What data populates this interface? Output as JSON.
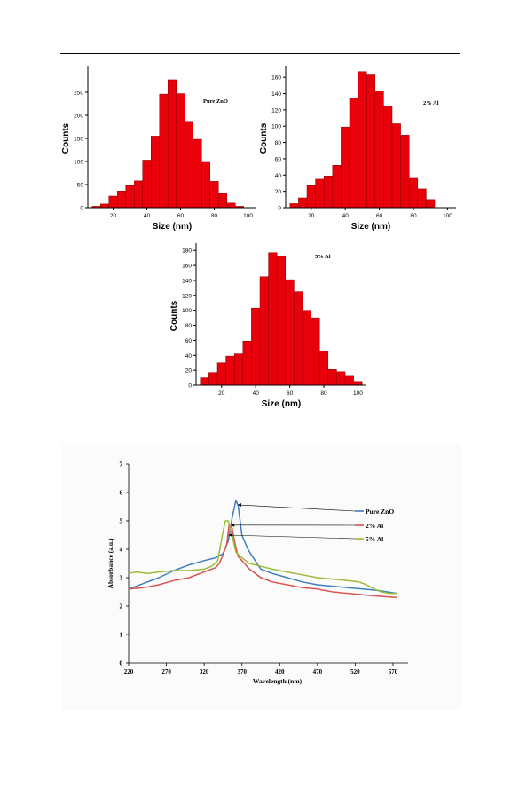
{
  "colors": {
    "bar_fill": "#e8000b",
    "bar_edge": "#8b0000",
    "pure_zno": "#3e7fc1",
    "al2": "#d9534f",
    "al5": "#9bbb3a"
  },
  "chart_data": [
    {
      "type": "bar",
      "annotation": "Pure ZnO",
      "xlabel": "Size (nm)",
      "ylabel": "Counts",
      "xlim": [
        5,
        105
      ],
      "ylim": [
        0,
        300
      ],
      "xticks": [
        20,
        40,
        60,
        80,
        100
      ],
      "yticks": [
        0,
        50,
        100,
        150,
        200,
        250
      ],
      "bin_width": 5,
      "categories": [
        10,
        15,
        20,
        25,
        30,
        35,
        40,
        45,
        50,
        55,
        60,
        65,
        70,
        75,
        80,
        85,
        90,
        95
      ],
      "values": [
        3,
        8,
        25,
        36,
        48,
        58,
        103,
        155,
        246,
        277,
        247,
        187,
        148,
        100,
        57,
        31,
        10,
        3
      ]
    },
    {
      "type": "bar",
      "annotation": "2% Al",
      "xlabel": "Size (nm)",
      "ylabel": "Counts",
      "xlim": [
        5,
        105
      ],
      "ylim": [
        0,
        170
      ],
      "xticks": [
        20,
        40,
        60,
        80,
        100
      ],
      "yticks": [
        0,
        20,
        40,
        60,
        80,
        100,
        120,
        140,
        160
      ],
      "bin_width": 5,
      "categories": [
        10,
        15,
        20,
        25,
        30,
        35,
        40,
        45,
        50,
        55,
        60,
        65,
        70,
        75,
        80,
        85,
        90
      ],
      "values": [
        5,
        12,
        27,
        35,
        39,
        52,
        99,
        134,
        167,
        164,
        143,
        125,
        103,
        89,
        36,
        23,
        10
      ]
    },
    {
      "type": "bar",
      "annotation": "5% Al",
      "xlabel": "Size (nm)",
      "ylabel": "Counts",
      "xlim": [
        5,
        105
      ],
      "ylim": [
        0,
        185
      ],
      "xticks": [
        20,
        40,
        60,
        80,
        100
      ],
      "yticks": [
        0,
        20,
        40,
        60,
        80,
        100,
        120,
        140,
        160,
        180
      ],
      "bin_width": 5,
      "categories": [
        10,
        15,
        20,
        25,
        30,
        35,
        40,
        45,
        50,
        55,
        60,
        65,
        70,
        75,
        80,
        85,
        90,
        95,
        100
      ],
      "values": [
        10,
        17,
        30,
        39,
        42,
        59,
        103,
        145,
        177,
        172,
        141,
        125,
        100,
        90,
        46,
        21,
        18,
        12,
        5
      ]
    },
    {
      "type": "line",
      "xlabel": "Wavelength (nm)",
      "ylabel": "Absorbance (a.u.)",
      "xlim": [
        220,
        590
      ],
      "ylim": [
        0,
        7
      ],
      "xticks": [
        220,
        270,
        320,
        370,
        420,
        470,
        520,
        570
      ],
      "yticks": [
        0,
        1,
        2,
        3,
        4,
        5,
        6,
        7
      ],
      "series": [
        {
          "name": "Pure ZnO",
          "x": [
            220,
            240,
            260,
            280,
            300,
            320,
            335,
            345,
            352,
            357,
            362,
            365,
            370,
            378,
            385,
            395,
            410,
            430,
            450,
            470,
            490,
            510,
            530,
            550,
            575
          ],
          "y": [
            2.6,
            2.8,
            3.0,
            3.25,
            3.45,
            3.6,
            3.7,
            3.85,
            4.3,
            5.1,
            5.72,
            5.55,
            4.5,
            4.0,
            3.7,
            3.3,
            3.15,
            3.0,
            2.85,
            2.75,
            2.7,
            2.65,
            2.6,
            2.55,
            2.45
          ]
        },
        {
          "name": "2% Al",
          "x": [
            220,
            240,
            260,
            280,
            300,
            320,
            335,
            340,
            345,
            350,
            353,
            357,
            360,
            365,
            370,
            380,
            395,
            410,
            430,
            450,
            470,
            490,
            510,
            530,
            550,
            575
          ],
          "y": [
            2.6,
            2.65,
            2.75,
            2.9,
            3.0,
            3.2,
            3.35,
            3.5,
            3.8,
            4.2,
            4.85,
            4.75,
            4.3,
            3.75,
            3.6,
            3.3,
            3.0,
            2.85,
            2.75,
            2.65,
            2.6,
            2.5,
            2.45,
            2.4,
            2.35,
            2.3
          ]
        },
        {
          "name": "5% Al",
          "x": [
            220,
            230,
            245,
            260,
            280,
            300,
            320,
            330,
            338,
            344,
            348,
            352,
            356,
            362,
            370,
            380,
            395,
            410,
            430,
            450,
            470,
            490,
            510,
            525,
            535,
            545,
            555,
            565,
            575
          ],
          "y": [
            3.15,
            3.2,
            3.15,
            3.2,
            3.25,
            3.25,
            3.3,
            3.4,
            3.6,
            4.5,
            5.0,
            5.0,
            4.6,
            3.9,
            3.7,
            3.5,
            3.4,
            3.3,
            3.2,
            3.1,
            3.0,
            2.95,
            2.9,
            2.85,
            2.75,
            2.6,
            2.5,
            2.45,
            2.45
          ]
        }
      ]
    }
  ]
}
